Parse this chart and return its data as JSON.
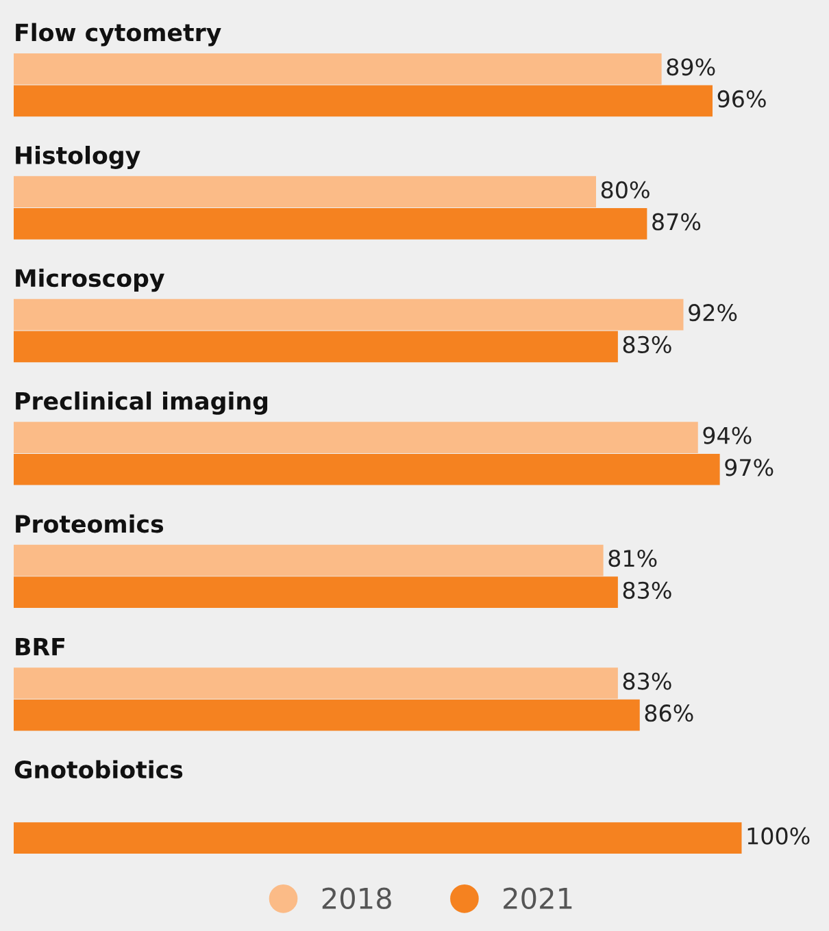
{
  "chart_data": {
    "type": "bar",
    "orientation": "horizontal",
    "categories": [
      "Flow cytometry",
      "Histology",
      "Microscopy",
      "Preclinical imaging",
      "Proteomics",
      "BRF",
      "Gnotobiotics"
    ],
    "series": [
      {
        "name": "2018",
        "color": "#fbbb87",
        "values": [
          89,
          80,
          92,
          94,
          81,
          83,
          0
        ],
        "value_labels": [
          "89%",
          "80%",
          "92%",
          "94%",
          "81%",
          "83%",
          null
        ]
      },
      {
        "name": "2021",
        "color": "#f58220",
        "values": [
          96,
          87,
          83,
          97,
          83,
          86,
          100
        ],
        "value_labels": [
          "96%",
          "87%",
          "83%",
          "97%",
          "83%",
          "86%",
          "100%"
        ]
      }
    ],
    "legend": "bottom"
  }
}
